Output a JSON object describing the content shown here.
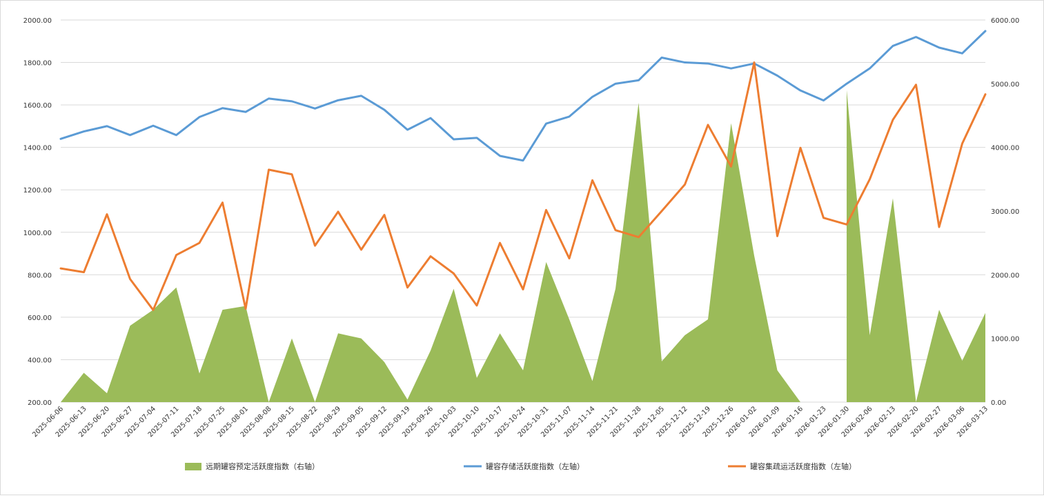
{
  "chart_data": {
    "type": "combo",
    "title": "",
    "categories": [
      "2025-06-06",
      "2025-06-13",
      "2025-06-20",
      "2025-06-27",
      "2025-07-04",
      "2025-07-11",
      "2025-07-18",
      "2025-07-25",
      "2025-08-01",
      "2025-08-08",
      "2025-08-15",
      "2025-08-22",
      "2025-08-29",
      "2025-09-05",
      "2025-09-12",
      "2025-09-19",
      "2025-09-26",
      "2025-10-03",
      "2025-10-10",
      "2025-10-17",
      "2025-10-24",
      "2025-10-31",
      "2025-11-07",
      "2025-11-14",
      "2025-11-21",
      "2025-11-28",
      "2025-12-05",
      "2025-12-12",
      "2025-12-19",
      "2025-12-26",
      "2026-01-02",
      "2026-01-09",
      "2026-01-16",
      "2026-01-23",
      "2026-01-30",
      "2026-02-06",
      "2026-02-13",
      "2026-02-20",
      "2026-02-27",
      "2026-03-06",
      "2026-03-13"
    ],
    "left_axis": {
      "ylim": [
        200,
        2000
      ],
      "ticks": [
        "200.00",
        "400.00",
        "600.00",
        "800.00",
        "1000.00",
        "1200.00",
        "1400.00",
        "1600.00",
        "1800.00",
        "2000.00"
      ],
      "tick_values": [
        200,
        400,
        600,
        800,
        1000,
        1200,
        1400,
        1600,
        1800,
        2000
      ]
    },
    "right_axis": {
      "ylim": [
        0,
        6000
      ],
      "ticks": [
        "0.00",
        "1000.00",
        "2000.00",
        "3000.00",
        "4000.00",
        "5000.00",
        "6000.00"
      ],
      "tick_values": [
        0,
        1000,
        2000,
        3000,
        4000,
        5000,
        6000
      ]
    },
    "grid": true,
    "legend_position": "bottom",
    "series": [
      {
        "name": "远期罐容预定活跃度指数（右轴）",
        "type": "area",
        "axis": "right",
        "color": "#9bbb59",
        "values": [
          0,
          460,
          140,
          1200,
          1450,
          1800,
          450,
          1450,
          1510,
          0,
          1000,
          0,
          1080,
          1000,
          630,
          40,
          810,
          1780,
          380,
          1080,
          500,
          2200,
          1300,
          330,
          1780,
          4700,
          640,
          1050,
          1300,
          4380,
          2300,
          500,
          0,
          null,
          4900,
          1050,
          3200,
          0,
          1450,
          650,
          1400
        ]
      },
      {
        "name": "罐容存储活跃度指数（左轴）",
        "type": "line",
        "axis": "left",
        "color": "#5b9bd5",
        "values": [
          1440,
          1475,
          1500,
          1458,
          1502,
          1458,
          1543,
          1585,
          1567,
          1630,
          1617,
          1583,
          1622,
          1643,
          1577,
          1483,
          1538,
          1438,
          1445,
          1360,
          1338,
          1512,
          1545,
          1638,
          1700,
          1716,
          1823,
          1800,
          1795,
          1772,
          1795,
          1738,
          1668,
          1621,
          1700,
          1772,
          1878,
          1920,
          1870,
          1843,
          1948
        ]
      },
      {
        "name": "罐容集疏运活跃度指数（左轴）",
        "type": "line",
        "axis": "left",
        "color": "#ed7d31",
        "values": [
          830,
          812,
          1085,
          780,
          634,
          893,
          950,
          1140,
          640,
          1295,
          1273,
          937,
          1097,
          918,
          1082,
          740,
          887,
          806,
          655,
          950,
          731,
          1105,
          877,
          1245,
          1010,
          977,
          1100,
          1225,
          1506,
          1310,
          1800,
          982,
          1398,
          1068,
          1037,
          1250,
          1530,
          1695,
          1025,
          1418,
          1650
        ]
      }
    ]
  }
}
